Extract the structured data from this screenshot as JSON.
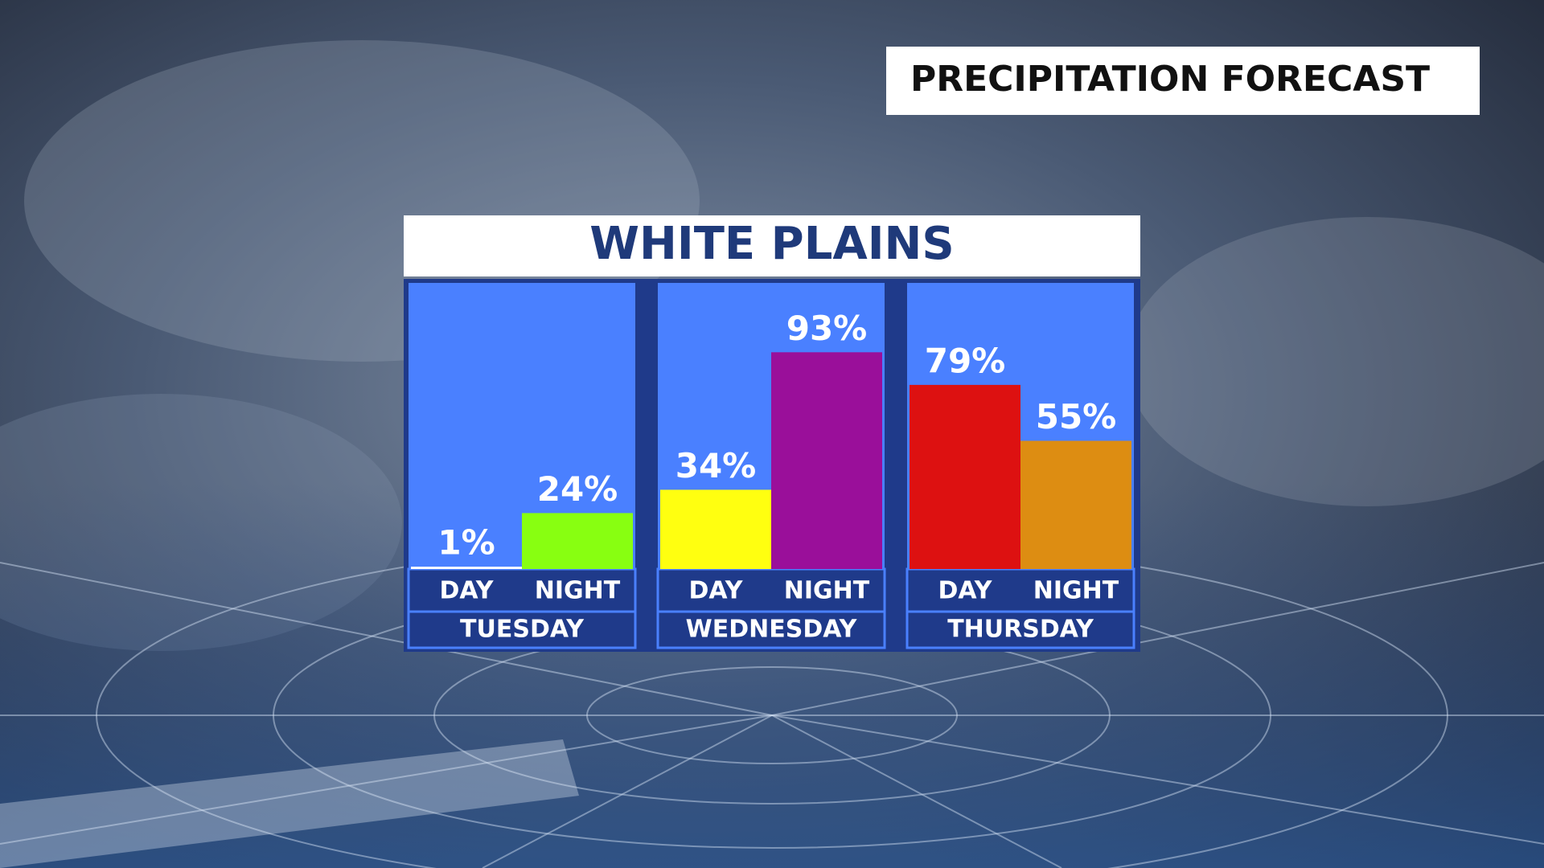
{
  "chart_data": {
    "type": "bar",
    "title": "PRECIPITATION FORECAST",
    "subtitle": "WHITE PLAINS",
    "ylim": [
      0,
      100
    ],
    "groups": [
      {
        "name": "TUESDAY",
        "categories": [
          "DAY",
          "NIGHT"
        ],
        "values": [
          1,
          24
        ],
        "value_labels": [
          "1%",
          "24%"
        ],
        "colors": [
          "#ffffff",
          "#88ff11"
        ]
      },
      {
        "name": "WEDNESDAY",
        "categories": [
          "DAY",
          "NIGHT"
        ],
        "values": [
          34,
          93
        ],
        "value_labels": [
          "34%",
          "93%"
        ],
        "colors": [
          "#ffff10",
          "#9a0f9a"
        ]
      },
      {
        "name": "THURSDAY",
        "categories": [
          "DAY",
          "NIGHT"
        ],
        "values": [
          79,
          55
        ],
        "value_labels": [
          "79%",
          "55%"
        ],
        "colors": [
          "#dd1111",
          "#dd8d12"
        ]
      }
    ]
  }
}
